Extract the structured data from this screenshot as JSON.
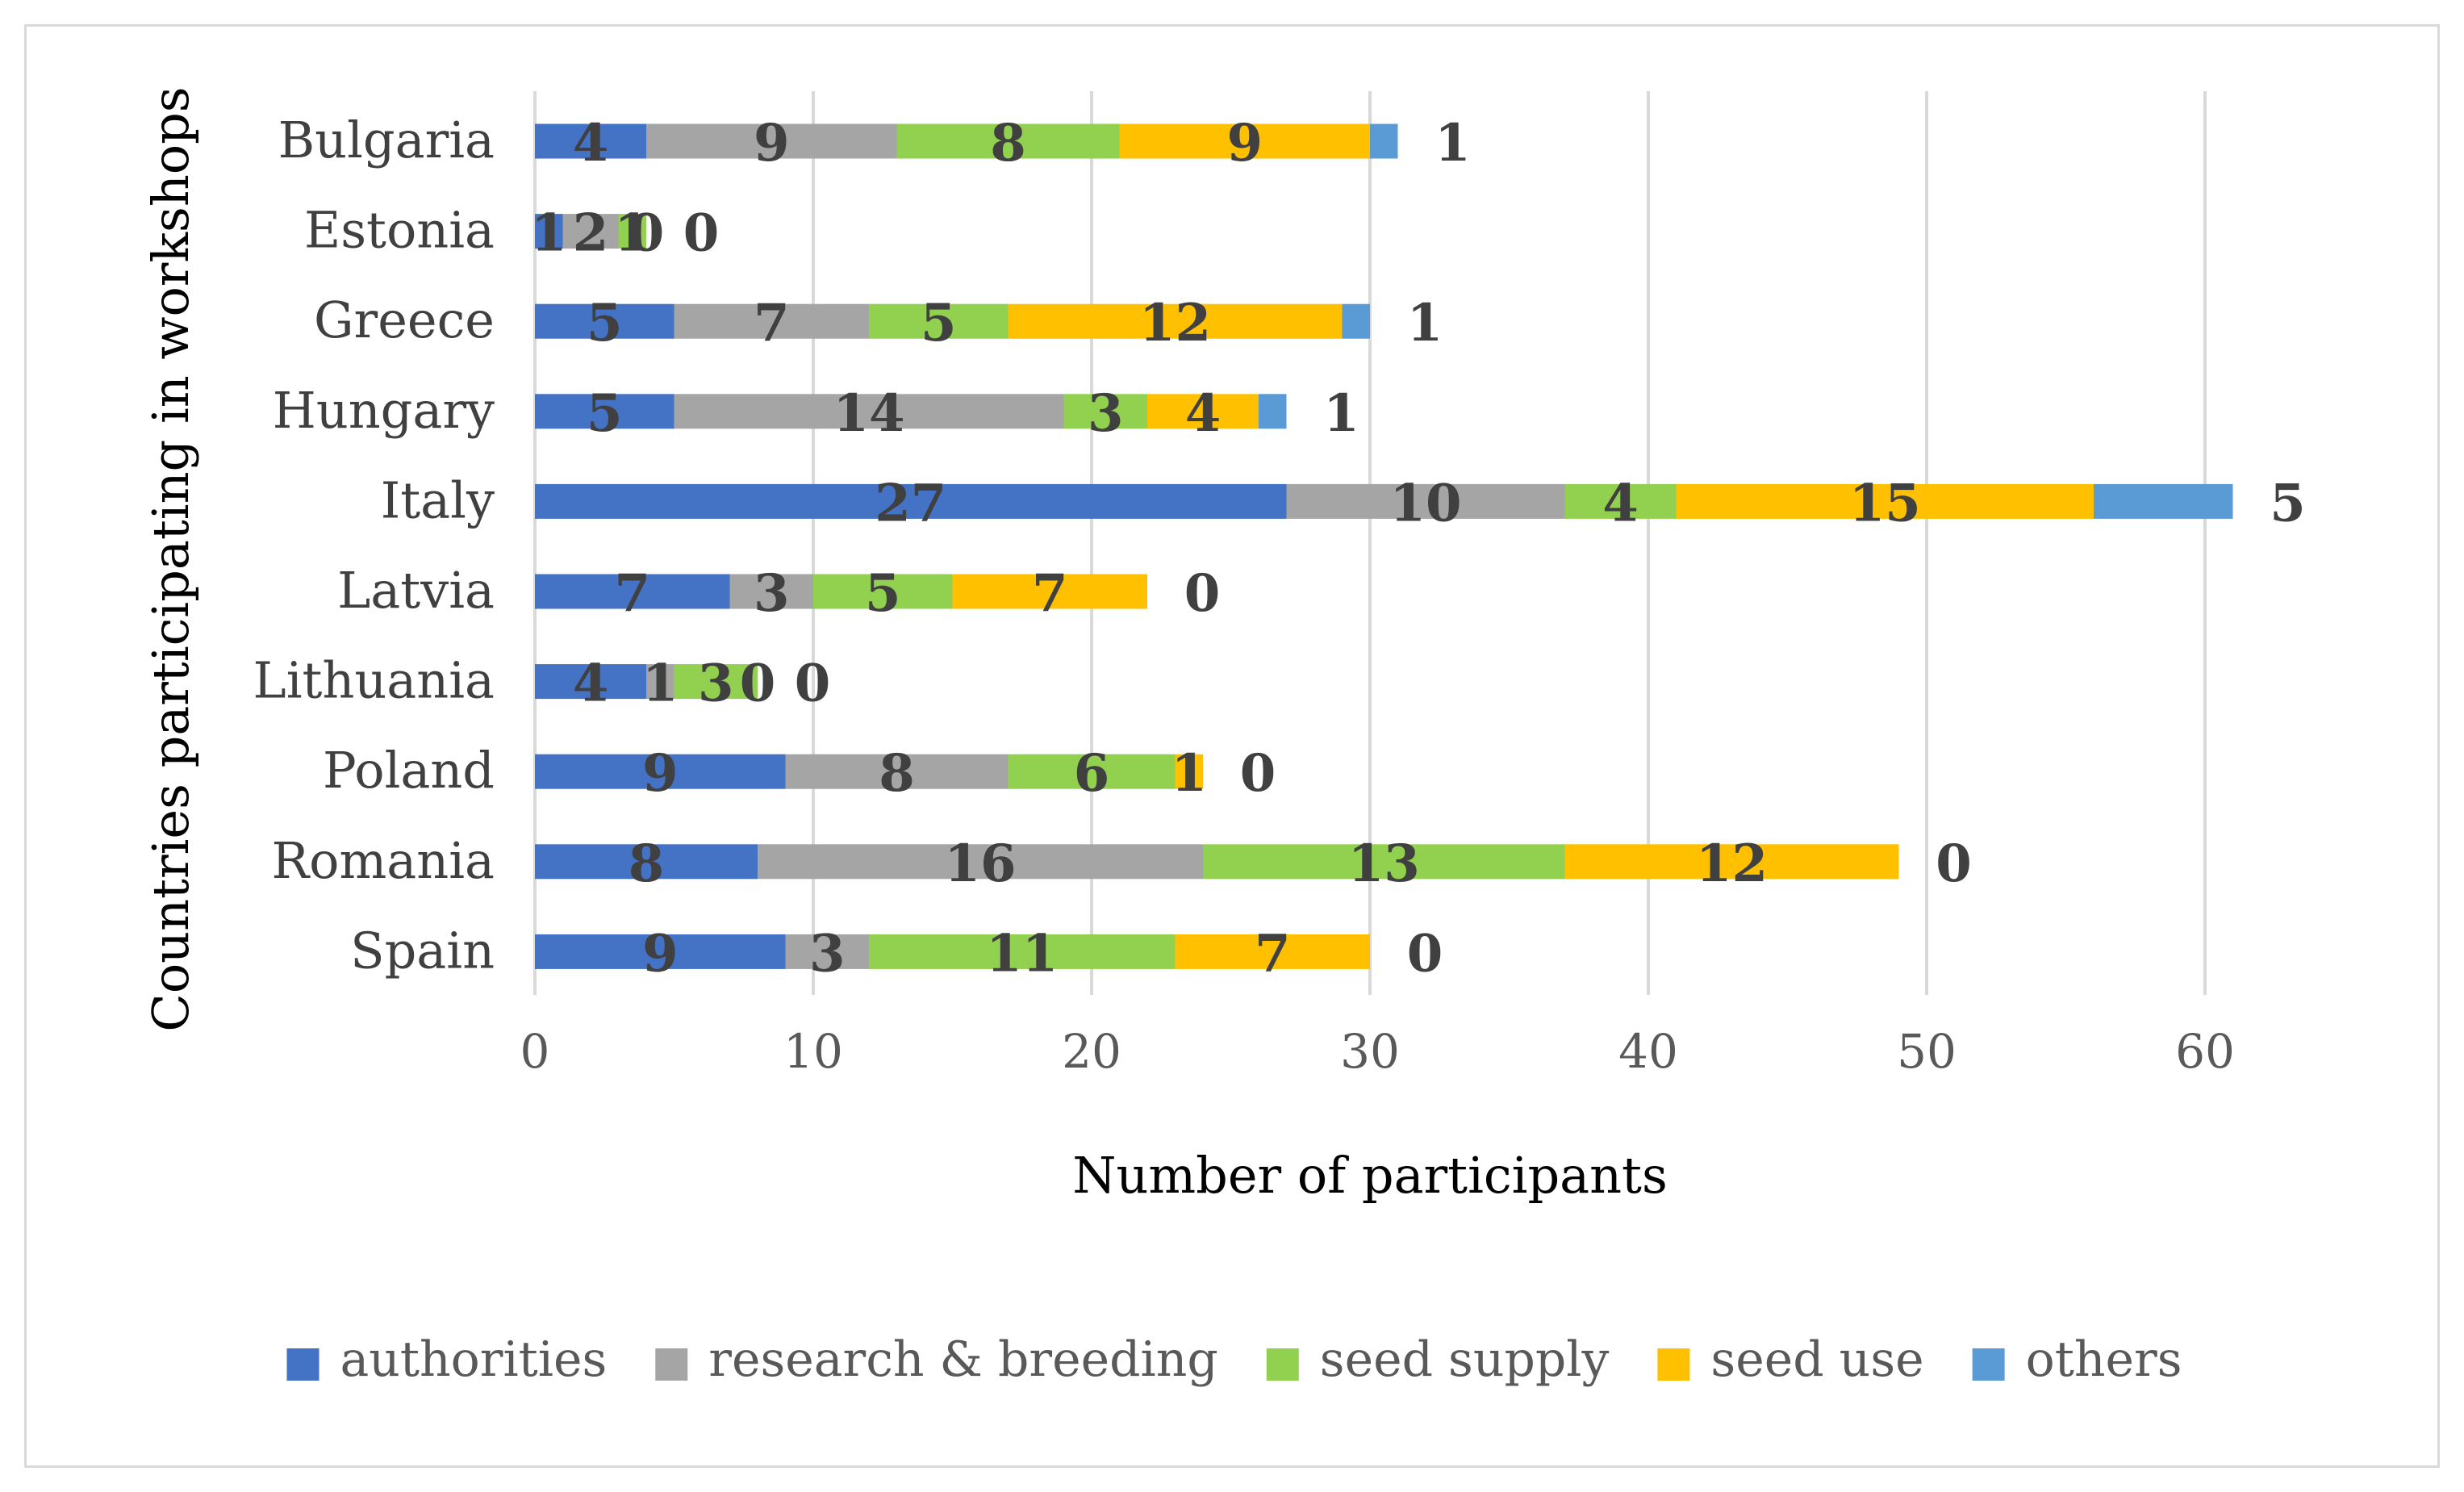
{
  "chart_data": {
    "type": "bar",
    "orientation": "horizontal",
    "stacked": true,
    "title": "",
    "xlabel": "Number of participants",
    "ylabel": "Countries participating in workshops",
    "xlim": [
      0,
      60
    ],
    "xticks": [
      "0",
      "10",
      "20",
      "30",
      "40",
      "50",
      "60"
    ],
    "grid": "vertical",
    "legend_position": "bottom",
    "categories": [
      "Bulgaria",
      "Estonia",
      "Greece",
      "Hungary",
      "Italy",
      "Latvia",
      "Lithuania",
      "Poland",
      "Romania",
      "Spain"
    ],
    "series": [
      {
        "name": "authorities",
        "color": "#4472c4",
        "values": [
          4,
          1,
          5,
          5,
          27,
          7,
          4,
          9,
          8,
          9
        ]
      },
      {
        "name": "research & breeding",
        "color": "#a5a5a5",
        "values": [
          9,
          2,
          7,
          14,
          10,
          3,
          1,
          8,
          16,
          3
        ]
      },
      {
        "name": "seed supply",
        "color": "#92d050",
        "values": [
          8,
          1,
          5,
          3,
          4,
          5,
          3,
          6,
          13,
          11
        ]
      },
      {
        "name": "seed use",
        "color": "#ffc000",
        "values": [
          9,
          0,
          12,
          4,
          15,
          7,
          0,
          1,
          12,
          7
        ]
      },
      {
        "name": "others",
        "color": "#5b9bd5",
        "values": [
          1,
          0,
          1,
          1,
          5,
          0,
          0,
          0,
          0,
          0
        ]
      }
    ],
    "data_label_color": "#404040"
  }
}
